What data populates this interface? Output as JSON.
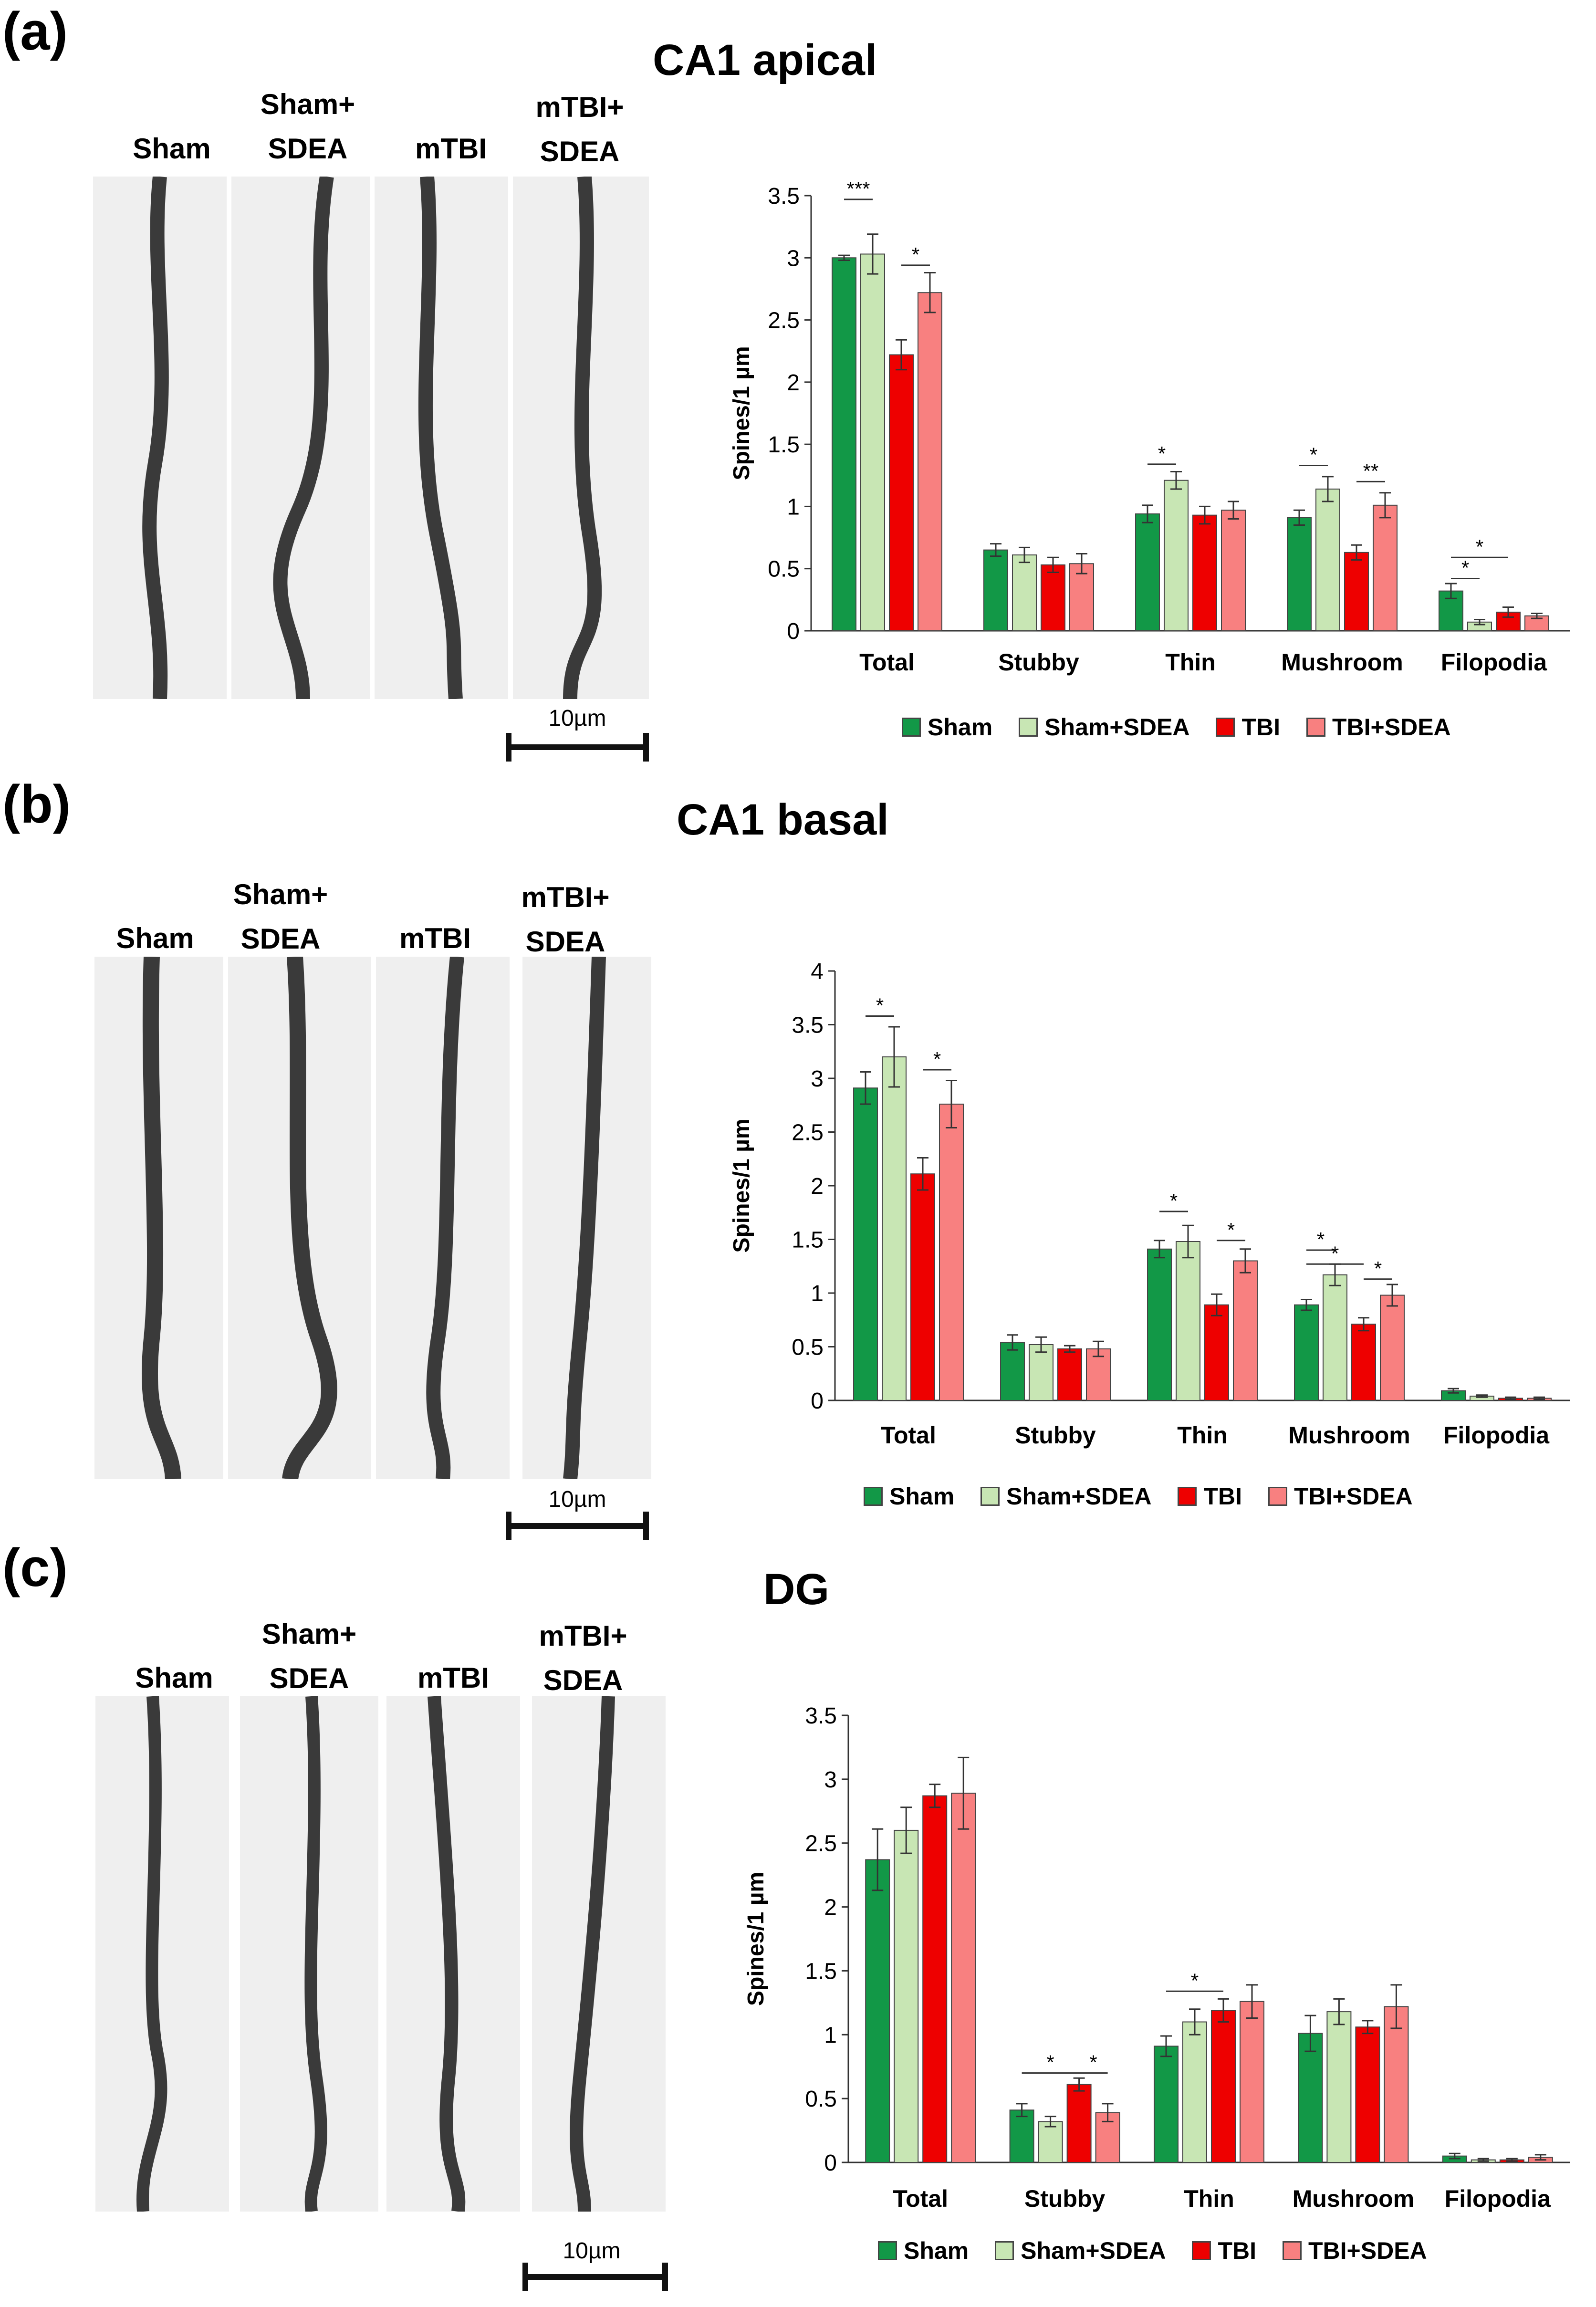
{
  "panels": [
    {
      "letter": "(a)",
      "title": "CA1 apical",
      "column_labels": [
        "Sham",
        "Sham+\nSDEA",
        "mTBI",
        "mTBI+\nSDEA"
      ],
      "scale_bar_label": "10µm"
    },
    {
      "letter": "(b)",
      "title": "CA1 basal",
      "column_labels": [
        "Sham",
        "Sham+\nSDEA",
        "mTBI",
        "mTBI+\nSDEA"
      ],
      "scale_bar_label": "10µm"
    },
    {
      "letter": "(c)",
      "title": "DG",
      "column_labels": [
        "Sham",
        "Sham+\nSDEA",
        "mTBI",
        "mTBI+\nSDEA"
      ],
      "scale_bar_label": "10µm"
    }
  ],
  "colors": {
    "Sham": "#129847",
    "Sham+SDEA": "#c8e6b4",
    "TBI": "#ee0000",
    "TBI+SDEA": "#f88080"
  },
  "chart_data": [
    {
      "type": "bar",
      "title": "CA1 apical",
      "ylabel": "Spines/1 µm",
      "xlabel": "",
      "ylim": [
        0,
        3.5
      ],
      "yticks": [
        "0",
        "0.5",
        "1",
        "1.5",
        "2",
        "2.5",
        "3",
        "3.5"
      ],
      "categories": [
        "Total",
        "Stubby",
        "Thin",
        "Mushroom",
        "Filopodia"
      ],
      "series": [
        {
          "name": "Sham",
          "values": [
            3.0,
            0.65,
            0.94,
            0.91,
            0.32
          ],
          "errors": [
            0.02,
            0.05,
            0.07,
            0.06,
            0.06
          ]
        },
        {
          "name": "Sham+SDEA",
          "values": [
            3.03,
            0.61,
            1.21,
            1.14,
            0.07
          ],
          "errors": [
            0.16,
            0.06,
            0.07,
            0.1,
            0.02
          ]
        },
        {
          "name": "TBI",
          "values": [
            2.22,
            0.53,
            0.93,
            0.63,
            0.15
          ],
          "errors": [
            0.12,
            0.06,
            0.07,
            0.06,
            0.04
          ]
        },
        {
          "name": "TBI+SDEA",
          "values": [
            2.72,
            0.54,
            0.97,
            1.01,
            0.12
          ],
          "errors": [
            0.16,
            0.08,
            0.07,
            0.1,
            0.02
          ]
        }
      ],
      "annotations": [
        {
          "label": "***",
          "category": 0,
          "from": 0,
          "to": 1,
          "y": 3.47
        },
        {
          "label": "*",
          "category": 0,
          "from": 2,
          "to": 3,
          "y": 2.94
        },
        {
          "label": "*",
          "category": 2,
          "from": 0,
          "to": 1,
          "y": 1.34
        },
        {
          "label": "*",
          "category": 3,
          "from": 0,
          "to": 1,
          "y": 1.33
        },
        {
          "label": "**",
          "category": 3,
          "from": 2,
          "to": 3,
          "y": 1.2
        },
        {
          "label": "*",
          "category": 4,
          "from": 0,
          "to": 1,
          "y": 0.42
        },
        {
          "label": "*",
          "category": 4,
          "from": 0,
          "to": 2,
          "y": 0.59
        }
      ],
      "legend": [
        "Sham",
        "Sham+SDEA",
        "TBI",
        "TBI+SDEA"
      ],
      "legend_position": "bottom"
    },
    {
      "type": "bar",
      "title": "CA1 basal",
      "ylabel": "Spines/1 µm",
      "xlabel": "",
      "ylim": [
        0,
        4
      ],
      "yticks": [
        "0",
        "0.5",
        "1",
        "1.5",
        "2",
        "2.5",
        "3",
        "3.5",
        "4"
      ],
      "categories": [
        "Total",
        "Stubby",
        "Thin",
        "Mushroom",
        "Filopodia"
      ],
      "series": [
        {
          "name": "Sham",
          "values": [
            2.91,
            0.54,
            1.41,
            0.89,
            0.09
          ],
          "errors": [
            0.15,
            0.07,
            0.08,
            0.05,
            0.02
          ]
        },
        {
          "name": "Sham+SDEA",
          "values": [
            3.2,
            0.52,
            1.48,
            1.17,
            0.04
          ],
          "errors": [
            0.28,
            0.07,
            0.15,
            0.1,
            0.01
          ]
        },
        {
          "name": "TBI",
          "values": [
            2.11,
            0.48,
            0.89,
            0.71,
            0.02
          ],
          "errors": [
            0.15,
            0.03,
            0.1,
            0.06,
            0.01
          ]
        },
        {
          "name": "TBI+SDEA",
          "values": [
            2.76,
            0.48,
            1.3,
            0.98,
            0.02
          ],
          "errors": [
            0.22,
            0.07,
            0.11,
            0.1,
            0.01
          ]
        }
      ],
      "annotations": [
        {
          "label": "*",
          "category": 0,
          "from": 0,
          "to": 1,
          "y": 3.58
        },
        {
          "label": "*",
          "category": 0,
          "from": 2,
          "to": 3,
          "y": 3.08
        },
        {
          "label": "*",
          "category": 2,
          "from": 0,
          "to": 1,
          "y": 1.76
        },
        {
          "label": "*",
          "category": 2,
          "from": 2,
          "to": 3,
          "y": 1.49
        },
        {
          "label": "*",
          "category": 3,
          "from": 0,
          "to": 1,
          "y": 1.4
        },
        {
          "label": "*",
          "category": 3,
          "from": 0,
          "to": 2,
          "y": 1.27
        },
        {
          "label": "*",
          "category": 3,
          "from": 2,
          "to": 3,
          "y": 1.13
        }
      ],
      "legend": [
        "Sham",
        "Sham+SDEA",
        "TBI",
        "TBI+SDEA"
      ],
      "legend_position": "bottom"
    },
    {
      "type": "bar",
      "title": "DG",
      "ylabel": "Spines/1 µm",
      "xlabel": "",
      "ylim": [
        0,
        3.5
      ],
      "yticks": [
        "0",
        "0.5",
        "1",
        "1.5",
        "2",
        "2.5",
        "3",
        "3.5"
      ],
      "categories": [
        "Total",
        "Stubby",
        "Thin",
        "Mushroom",
        "Filopodia"
      ],
      "series": [
        {
          "name": "Sham",
          "values": [
            2.37,
            0.41,
            0.91,
            1.01,
            0.05
          ],
          "errors": [
            0.24,
            0.05,
            0.08,
            0.14,
            0.02
          ]
        },
        {
          "name": "Sham+SDEA",
          "values": [
            2.6,
            0.32,
            1.1,
            1.18,
            0.02
          ],
          "errors": [
            0.18,
            0.04,
            0.1,
            0.1,
            0.01
          ]
        },
        {
          "name": "TBI",
          "values": [
            2.87,
            0.61,
            1.19,
            1.06,
            0.02
          ],
          "errors": [
            0.09,
            0.05,
            0.09,
            0.05,
            0.01
          ]
        },
        {
          "name": "TBI+SDEA",
          "values": [
            2.89,
            0.39,
            1.26,
            1.22,
            0.04
          ],
          "errors": [
            0.28,
            0.07,
            0.13,
            0.17,
            0.02
          ]
        }
      ],
      "annotations": [
        {
          "label": "*",
          "category": 1,
          "from": 0,
          "to": 2,
          "y": 0.7
        },
        {
          "label": "*",
          "category": 1,
          "from": 2,
          "to": 3,
          "y": 0.7
        },
        {
          "label": "*",
          "category": 2,
          "from": 0,
          "to": 2,
          "y": 1.34
        }
      ],
      "legend": [
        "Sham",
        "Sham+SDEA",
        "TBI",
        "TBI+SDEA"
      ],
      "legend_position": "bottom"
    }
  ]
}
